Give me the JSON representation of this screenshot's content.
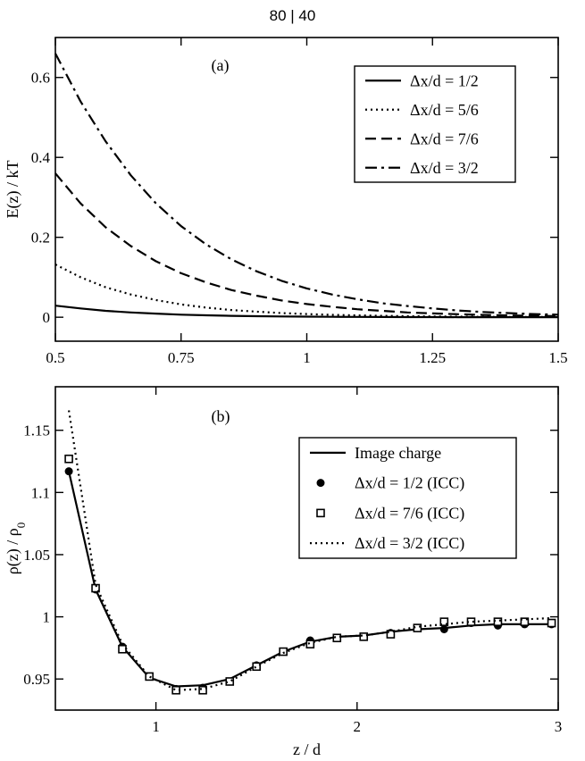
{
  "header": {
    "text": "80 | 40"
  },
  "chart_data": [
    {
      "type": "line",
      "panel_label": "(a)",
      "ylabel": "E(z) / kT",
      "xlabel": "",
      "xlim": [
        0.5,
        1.5
      ],
      "ylim": [
        -0.06,
        0.7
      ],
      "xticks": [
        0.5,
        0.75,
        1,
        1.25,
        1.5
      ],
      "xtick_labels": [
        "0.5",
        "0.75",
        "1",
        "1.25",
        "1.5"
      ],
      "yticks": [
        0,
        0.2,
        0.4,
        0.6
      ],
      "ytick_labels": [
        "0",
        "0.2",
        "0.4",
        "0.6"
      ],
      "legend_position": "top-right",
      "series": [
        {
          "name": "Δx/d = 1/2",
          "dash": "solid",
          "x": [
            0.5,
            0.55,
            0.6,
            0.65,
            0.7,
            0.75,
            0.8,
            0.85,
            0.9,
            0.95,
            1.0,
            1.05,
            1.1,
            1.15,
            1.2,
            1.25,
            1.3,
            1.35,
            1.4,
            1.45,
            1.5
          ],
          "y": [
            0.029,
            0.022,
            0.016,
            0.012,
            0.009,
            0.0065,
            0.0048,
            0.0035,
            0.0026,
            0.0019,
            0.0014,
            0.001,
            0.0008,
            0.0006,
            0.0004,
            0.0003,
            0.0002,
            0.0002,
            0.0001,
            0.0001,
            0.0001
          ]
        },
        {
          "name": "Δx/d = 5/6",
          "dash": "dotted",
          "x": [
            0.5,
            0.55,
            0.6,
            0.65,
            0.7,
            0.75,
            0.8,
            0.85,
            0.9,
            0.95,
            1.0,
            1.05,
            1.1,
            1.15,
            1.2,
            1.25,
            1.3,
            1.35,
            1.4,
            1.45,
            1.5
          ],
          "y": [
            0.132,
            0.1,
            0.075,
            0.057,
            0.043,
            0.032,
            0.024,
            0.018,
            0.014,
            0.0105,
            0.008,
            0.006,
            0.0045,
            0.0034,
            0.0026,
            0.002,
            0.0015,
            0.0011,
            0.0008,
            0.0006,
            0.0005
          ]
        },
        {
          "name": "Δx/d = 7/6",
          "dash": "dashed",
          "x": [
            0.5,
            0.55,
            0.6,
            0.65,
            0.7,
            0.75,
            0.8,
            0.85,
            0.9,
            0.95,
            1.0,
            1.05,
            1.1,
            1.15,
            1.2,
            1.25,
            1.3,
            1.35,
            1.4,
            1.45,
            1.5
          ],
          "y": [
            0.36,
            0.285,
            0.225,
            0.178,
            0.14,
            0.11,
            0.087,
            0.068,
            0.054,
            0.042,
            0.033,
            0.026,
            0.02,
            0.016,
            0.012,
            0.0095,
            0.0074,
            0.0058,
            0.0045,
            0.0035,
            0.0027
          ]
        },
        {
          "name": "Δx/d = 3/2",
          "dash": "dashdot",
          "x": [
            0.5,
            0.55,
            0.6,
            0.65,
            0.7,
            0.75,
            0.8,
            0.85,
            0.9,
            0.95,
            1.0,
            1.05,
            1.1,
            1.15,
            1.2,
            1.25,
            1.3,
            1.35,
            1.4,
            1.45,
            1.5
          ],
          "y": [
            0.66,
            0.54,
            0.44,
            0.355,
            0.285,
            0.228,
            0.182,
            0.145,
            0.115,
            0.091,
            0.072,
            0.057,
            0.045,
            0.035,
            0.028,
            0.022,
            0.017,
            0.013,
            0.0105,
            0.008,
            0.0063
          ]
        }
      ]
    },
    {
      "type": "line",
      "panel_label": "(b)",
      "ylabel": "ρ(z) / ρ",
      "ylabel_sub": "0",
      "xlabel": "z / d",
      "xlim": [
        0.5,
        3
      ],
      "ylim": [
        0.925,
        1.185
      ],
      "xticks": [
        1,
        2,
        3
      ],
      "xtick_labels": [
        "1",
        "2",
        "3"
      ],
      "yticks": [
        0.95,
        1,
        1.05,
        1.1,
        1.15
      ],
      "ytick_labels": [
        "0.95",
        "1",
        "1.05",
        "1.1",
        "1.15"
      ],
      "legend_position": "top-right",
      "series": [
        {
          "name": "Image charge",
          "style": "line",
          "dash": "solid",
          "x": [
            0.567,
            0.7,
            0.833,
            0.967,
            1.1,
            1.233,
            1.367,
            1.5,
            1.633,
            1.767,
            1.9,
            2.033,
            2.167,
            2.3,
            2.433,
            2.567,
            2.7,
            2.833,
            2.967
          ],
          "y": [
            1.117,
            1.022,
            0.976,
            0.951,
            0.944,
            0.945,
            0.95,
            0.961,
            0.972,
            0.98,
            0.984,
            0.985,
            0.988,
            0.99,
            0.991,
            0.993,
            0.994,
            0.994,
            0.994
          ]
        },
        {
          "name": "Δx/d = 1/2 (ICC)",
          "style": "marker",
          "marker": "circle",
          "x": [
            0.567,
            0.7,
            0.833,
            0.967,
            1.1,
            1.233,
            1.367,
            1.5,
            1.633,
            1.767,
            1.9,
            2.033,
            2.167,
            2.3,
            2.433,
            2.567,
            2.7,
            2.833,
            2.967
          ],
          "y": [
            1.117,
            1.022,
            0.976,
            0.952,
            0.942,
            0.943,
            0.948,
            0.961,
            0.972,
            0.981,
            0.983,
            0.984,
            0.987,
            0.991,
            0.99,
            0.995,
            0.993,
            0.994,
            0.994
          ]
        },
        {
          "name": "Δx/d = 7/6 (ICC)",
          "style": "marker",
          "marker": "square",
          "x": [
            0.567,
            0.7,
            0.833,
            0.967,
            1.1,
            1.233,
            1.367,
            1.5,
            1.633,
            1.767,
            1.9,
            2.033,
            2.167,
            2.3,
            2.433,
            2.567,
            2.7,
            2.833,
            2.967
          ],
          "y": [
            1.127,
            1.023,
            0.974,
            0.952,
            0.941,
            0.941,
            0.948,
            0.96,
            0.972,
            0.978,
            0.983,
            0.984,
            0.986,
            0.991,
            0.996,
            0.996,
            0.996,
            0.996,
            0.995
          ]
        },
        {
          "name": "Δx/d = 3/2 (ICC)",
          "style": "line",
          "dash": "dotted",
          "x": [
            0.567,
            0.7,
            0.833,
            0.967,
            1.1,
            1.233,
            1.367,
            1.5,
            1.633,
            1.767,
            1.9,
            2.033,
            2.167,
            2.3,
            2.433,
            2.567,
            2.7,
            2.833,
            2.967
          ],
          "y": [
            1.166,
            1.026,
            0.978,
            0.952,
            0.941,
            0.942,
            0.948,
            0.96,
            0.971,
            0.979,
            0.984,
            0.985,
            0.988,
            0.992,
            0.994,
            0.996,
            0.997,
            0.998,
            0.999
          ]
        }
      ]
    }
  ]
}
